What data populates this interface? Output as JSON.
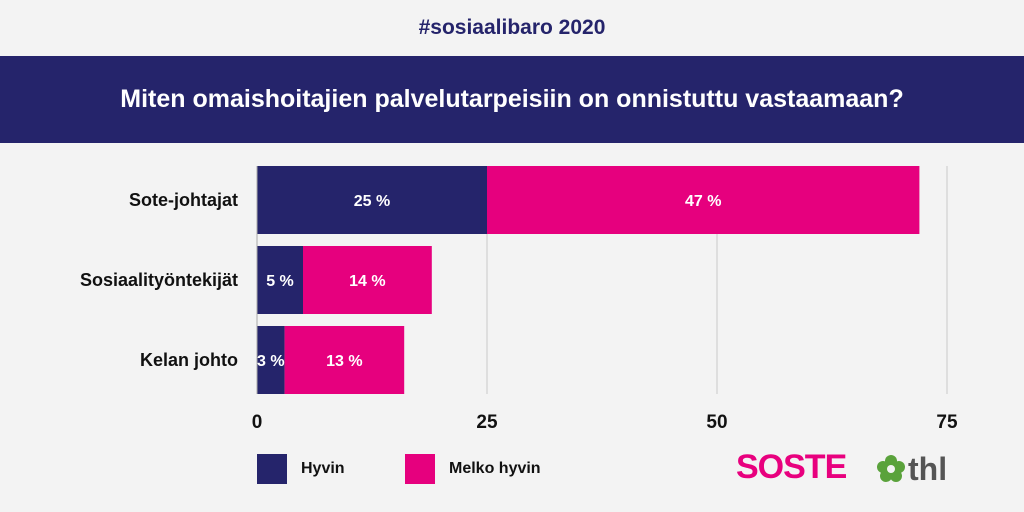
{
  "header": {
    "hashtag": "#sosiaalibaro 2020",
    "title": "Miten omaishoitajien palvelutarpeisiin on onnistuttu vastaamaan?"
  },
  "colors": {
    "navy": "#25246b",
    "magenta": "#e6007e",
    "background": "#f3f3f3",
    "grid": "#c8c8c8",
    "thl_green": "#5aa23b"
  },
  "chart_data": {
    "type": "bar",
    "orientation": "horizontal",
    "stacked": true,
    "categories": [
      "Sote-johtajat",
      "Sosiaalityöntekijät",
      "Kelan johto"
    ],
    "series": [
      {
        "name": "Hyvin",
        "values": [
          25,
          5,
          3
        ],
        "labels": [
          "25 %",
          "5 %",
          "3 %"
        ],
        "color": "#25246b"
      },
      {
        "name": "Melko hyvin",
        "values": [
          47,
          14,
          13
        ],
        "labels": [
          "47 %",
          "14 %",
          "13 %"
        ],
        "color": "#e6007e"
      }
    ],
    "xlim": [
      0,
      75
    ],
    "xticks": [
      0,
      25,
      50,
      75
    ],
    "grid": true,
    "legend": "bottom-left"
  },
  "logos": {
    "soste": "SOSTE",
    "thl": "thl"
  }
}
